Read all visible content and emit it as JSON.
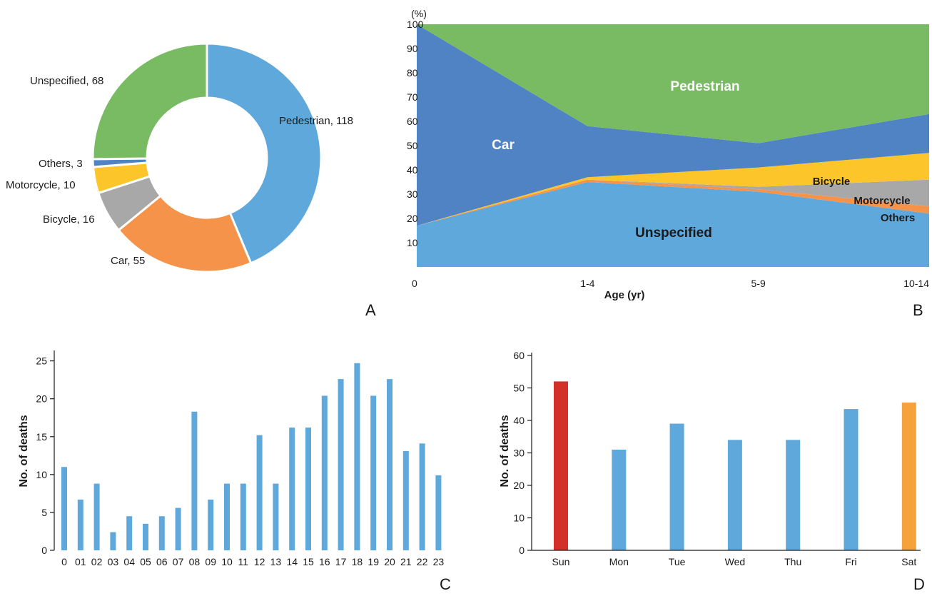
{
  "chart_data": [
    {
      "panel": "A",
      "type": "pie",
      "donut": true,
      "slices": [
        {
          "label": "Pedestrian",
          "value": 118,
          "color": "#5fa8dc"
        },
        {
          "label": "Car",
          "value": 55,
          "color": "#f5934a"
        },
        {
          "label": "Bicycle",
          "value": 16,
          "color": "#a8a8a8"
        },
        {
          "label": "Motorcycle",
          "value": 10,
          "color": "#fcc62a"
        },
        {
          "label": "Others",
          "value": 3,
          "color": "#4f83c4"
        },
        {
          "label": "Unspecified",
          "value": 68,
          "color": "#78bb62"
        }
      ],
      "slice_labels": [
        "Pedestrian, 118",
        "Car, 55",
        "Bicycle, 16",
        "Motorcycle, 10",
        "Others, 3",
        "Unspecified, 68"
      ]
    },
    {
      "panel": "B",
      "type": "area",
      "stacked": true,
      "percent": true,
      "x": [
        "0",
        "1-4",
        "5-9",
        "10-14"
      ],
      "xlabel": "Age (yr)",
      "ylabel": "(%)",
      "ylim": [
        0,
        100
      ],
      "yticks": [
        10,
        20,
        30,
        40,
        50,
        60,
        70,
        80,
        90,
        100
      ],
      "series": [
        {
          "name": "Unspecified",
          "values": [
            17,
            35,
            31,
            22
          ],
          "color": "#5fa8dc"
        },
        {
          "name": "Others",
          "values": [
            0,
            1,
            1,
            3
          ],
          "color": "#f5934a"
        },
        {
          "name": "Motorcycle",
          "values": [
            0,
            0,
            1,
            11
          ],
          "color": "#a8a8a8"
        },
        {
          "name": "Bicycle",
          "values": [
            0,
            1,
            8,
            11
          ],
          "color": "#fcc62a"
        },
        {
          "name": "Car",
          "values": [
            83,
            21,
            10,
            16
          ],
          "color": "#4f83c4"
        },
        {
          "name": "Pedestrian",
          "values": [
            0,
            42,
            49,
            37
          ],
          "color": "#78bb62"
        }
      ]
    },
    {
      "panel": "C",
      "type": "bar",
      "categories": [
        "0",
        "01",
        "02",
        "03",
        "04",
        "05",
        "06",
        "07",
        "08",
        "09",
        "10",
        "11",
        "12",
        "13",
        "14",
        "15",
        "16",
        "17",
        "18",
        "19",
        "20",
        "21",
        "22",
        "23"
      ],
      "values": [
        11,
        6.7,
        8.8,
        2.4,
        4.5,
        3.5,
        4.5,
        5.6,
        18.3,
        6.7,
        8.8,
        8.8,
        15.2,
        8.8,
        16.2,
        16.2,
        20.4,
        22.6,
        24.7,
        20.4,
        22.6,
        13.1,
        14.1,
        9.9
      ],
      "ylabel": "No. of  deaths",
      "ylim": [
        0,
        26
      ],
      "yticks": [
        0,
        5,
        10,
        15,
        20,
        25
      ],
      "color": "#5fa8dc"
    },
    {
      "panel": "D",
      "type": "bar",
      "categories": [
        "Sun",
        "Mon",
        "Tue",
        "Wed",
        "Thu",
        "Fri",
        "Sat"
      ],
      "values": [
        52,
        31,
        39,
        34,
        34,
        43.5,
        45.5
      ],
      "colors": [
        "#d32f2b",
        "#5fa8dc",
        "#5fa8dc",
        "#5fa8dc",
        "#5fa8dc",
        "#5fa8dc",
        "#f5a13c"
      ],
      "ylabel": "No. of  deaths",
      "ylim": [
        0,
        60
      ],
      "yticks": [
        0,
        10,
        20,
        30,
        40,
        50,
        60
      ]
    }
  ],
  "panels": {
    "a": "A",
    "b": "B",
    "c": "C",
    "d": "D"
  }
}
